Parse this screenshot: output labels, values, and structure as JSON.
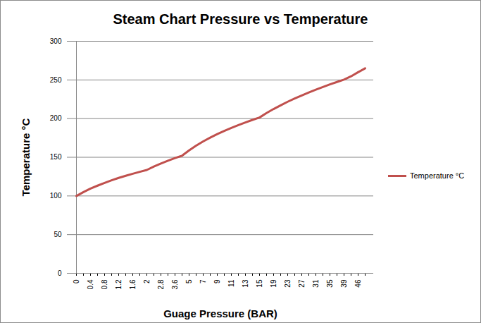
{
  "chart_data": {
    "type": "line",
    "title": "Steam Chart Pressure vs Temperature",
    "x_label": "Guage Pressure (BAR)",
    "y_label": "Temperature °C",
    "categories": [
      "0",
      null,
      "0.4",
      null,
      "0.8",
      null,
      "1.2",
      null,
      "1.6",
      null,
      "2",
      null,
      "2.8",
      null,
      "3.6",
      null,
      "5",
      null,
      "7",
      null,
      "9",
      null,
      "11",
      null,
      "13",
      null,
      "15",
      null,
      "19",
      null,
      "23",
      null,
      "27",
      null,
      "31",
      null,
      "35",
      null,
      "39",
      null,
      "46",
      null
    ],
    "series": [
      {
        "name": "Temperature °C",
        "color": "#c0504d",
        "values": [
          100,
          105,
          109.5,
          113.3,
          116.9,
          120.2,
          123.3,
          126.1,
          128.7,
          131.2,
          133.6,
          138,
          142,
          145.6,
          148.9,
          152,
          158.9,
          165,
          170.5,
          175.4,
          180,
          184.1,
          188,
          191.6,
          195,
          198.3,
          201.4,
          207.2,
          212.4,
          217.2,
          221.8,
          226,
          230,
          233.8,
          237.4,
          240.9,
          244.2,
          247.3,
          250.4,
          254.7,
          260,
          265
        ]
      }
    ],
    "ylim": [
      0,
      300
    ],
    "yticks": [
      0,
      50,
      100,
      150,
      200,
      250,
      300
    ],
    "grid": true,
    "legend": "right"
  }
}
